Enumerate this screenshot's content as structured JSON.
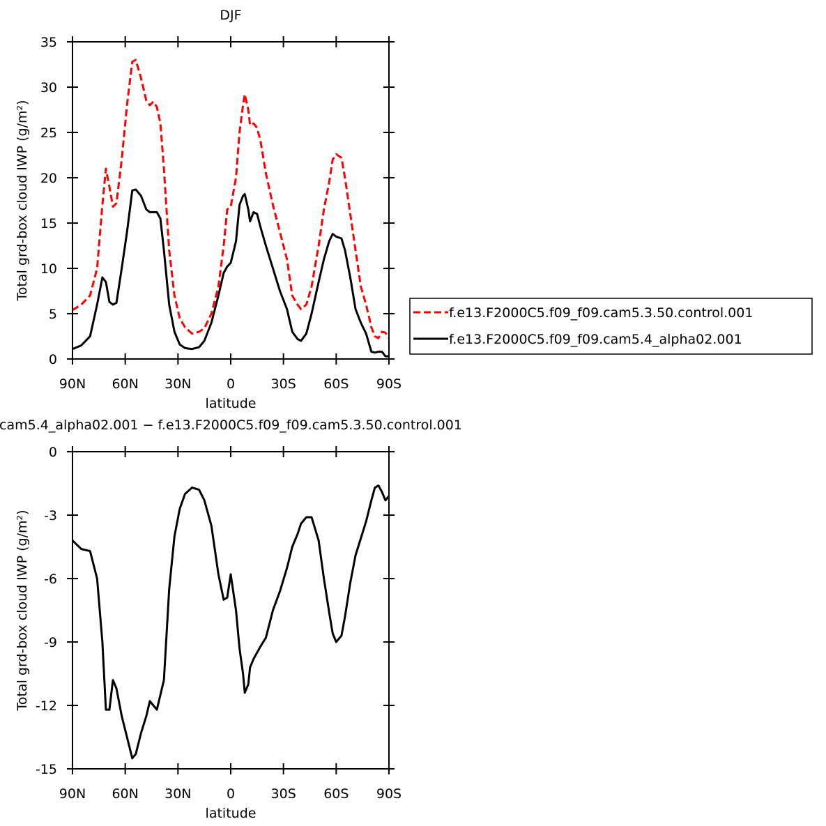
{
  "chart_data": [
    {
      "type": "line",
      "title": "DJF",
      "xlabel": "latitude",
      "ylabel": "Total grd-box cloud IWP (g/m²)",
      "x": [
        90,
        85,
        80,
        76,
        73,
        71,
        69,
        67,
        65,
        62,
        59,
        56,
        54,
        51,
        48,
        46,
        44,
        42,
        40,
        38,
        35,
        32,
        29,
        26,
        22,
        18,
        15,
        11,
        7,
        4,
        2,
        0,
        -3,
        -5,
        -7,
        -8,
        -10,
        -11,
        -13,
        -15,
        -17,
        -20,
        -24,
        -28,
        -32,
        -35,
        -38,
        -40,
        -43,
        -46,
        -50,
        -53,
        -56,
        -58,
        -60,
        -63,
        -65,
        -68,
        -71,
        -74,
        -77,
        -80,
        -82,
        -84,
        -86,
        -88,
        -90
      ],
      "xlim": [
        90,
        -90
      ],
      "xticks": [
        {
          "value": 90,
          "label": "90N"
        },
        {
          "value": 60,
          "label": "60N"
        },
        {
          "value": 30,
          "label": "30N"
        },
        0,
        {
          "value": -30,
          "label": "30S"
        },
        {
          "value": -60,
          "label": "60S"
        },
        {
          "value": -90,
          "label": "90S"
        }
      ],
      "ylim": [
        0,
        35
      ],
      "yticks": [
        0,
        5,
        10,
        15,
        20,
        25,
        30,
        35
      ],
      "legend": "right",
      "series": [
        {
          "name": "f.e13.F2000C5.f09_f09.cam5.3.50.control.001",
          "color": "#ff0000",
          "linestyle": "dashed",
          "values": [
            5.4,
            6.0,
            7.0,
            10,
            17,
            21,
            19,
            16.8,
            17.2,
            22,
            28,
            32.8,
            33,
            31,
            28.5,
            28,
            28.4,
            27.8,
            26,
            21,
            12,
            7,
            4.5,
            3.5,
            2.8,
            3.0,
            3.4,
            5,
            8,
            12.5,
            16.5,
            16.8,
            20,
            25,
            28,
            29.2,
            27.5,
            25.8,
            26,
            25.5,
            24,
            20.5,
            17,
            14,
            11,
            7,
            6,
            5.5,
            6,
            8,
            12.5,
            16.5,
            19.5,
            22,
            22.6,
            22.2,
            20,
            16,
            12,
            8,
            6,
            3.5,
            2.5,
            2.3,
            3,
            2.9,
            2.3
          ]
        },
        {
          "name": "f.e13.F2000C5.f09_f09.cam5.4_alpha02.001",
          "color": "#000000",
          "linestyle": "solid",
          "values": [
            1.1,
            1.5,
            2.5,
            6,
            9,
            8.5,
            6.3,
            6.0,
            6.2,
            10,
            14,
            18.6,
            18.7,
            18,
            16.5,
            16.2,
            16.2,
            16.2,
            15.5,
            12,
            6,
            3,
            1.6,
            1.2,
            1.1,
            1.3,
            2,
            4,
            7,
            9.5,
            10.2,
            10.6,
            13,
            17,
            18,
            18.2,
            16.5,
            15.2,
            16.2,
            16,
            14.5,
            12.5,
            10,
            7.5,
            5.5,
            3,
            2.2,
            2.0,
            2.8,
            5,
            8.5,
            11,
            13,
            13.8,
            13.5,
            13.3,
            12,
            9,
            5.5,
            4,
            2.8,
            0.8,
            0.7,
            0.8,
            0.8,
            0.3,
            0.3
          ]
        }
      ]
    },
    {
      "type": "line",
      "title": "cam5.4_alpha02.001 − f.e13.F2000C5.f09_f09.cam5.3.50.control.001",
      "xlabel": "latitude",
      "ylabel": "Total grd-box cloud IWP (g/m²)",
      "x": [
        90,
        85,
        80,
        76,
        73,
        71,
        69,
        67,
        65,
        62,
        59,
        56,
        54,
        51,
        48,
        46,
        44,
        42,
        40,
        38,
        35,
        32,
        29,
        26,
        22,
        18,
        15,
        11,
        7,
        4,
        2,
        0,
        -3,
        -5,
        -7,
        -8,
        -10,
        -11,
        -13,
        -15,
        -17,
        -20,
        -24,
        -28,
        -32,
        -35,
        -38,
        -40,
        -43,
        -46,
        -50,
        -53,
        -56,
        -58,
        -60,
        -63,
        -65,
        -68,
        -71,
        -74,
        -77,
        -80,
        -82,
        -84,
        -86,
        -88,
        -90
      ],
      "xlim": [
        90,
        -90
      ],
      "xticks": [
        {
          "value": 90,
          "label": "90N"
        },
        {
          "value": 60,
          "label": "60N"
        },
        {
          "value": 30,
          "label": "30N"
        },
        0,
        {
          "value": -30,
          "label": "30S"
        },
        {
          "value": -60,
          "label": "60S"
        },
        {
          "value": -90,
          "label": "90S"
        }
      ],
      "ylim": [
        -15,
        0
      ],
      "yticks": [
        0,
        -3,
        -6,
        -9,
        -12,
        -15
      ],
      "series": [
        {
          "color": "#000000",
          "linestyle": "solid",
          "values": [
            -4.2,
            -4.6,
            -4.7,
            -6.0,
            -9,
            -12.2,
            -12.2,
            -10.8,
            -11.2,
            -12.5,
            -13.5,
            -14.5,
            -14.3,
            -13.3,
            -12.5,
            -11.8,
            -12,
            -12.2,
            -11.5,
            -10.8,
            -6.5,
            -4,
            -2.7,
            -2.0,
            -1.7,
            -1.8,
            -2.3,
            -3.5,
            -5.8,
            -7.0,
            -6.9,
            -5.8,
            -7.5,
            -9.3,
            -10.5,
            -11.4,
            -11,
            -10.2,
            -9.8,
            -9.5,
            -9.2,
            -8.8,
            -7.5,
            -6.6,
            -5.5,
            -4.5,
            -3.9,
            -3.4,
            -3.1,
            -3.1,
            -4.2,
            -6.0,
            -7.6,
            -8.6,
            -9.0,
            -8.7,
            -7.8,
            -6.2,
            -4.9,
            -4.1,
            -3.3,
            -2.3,
            -1.7,
            -1.6,
            -1.9,
            -2.3,
            -2.1
          ]
        }
      ]
    }
  ]
}
